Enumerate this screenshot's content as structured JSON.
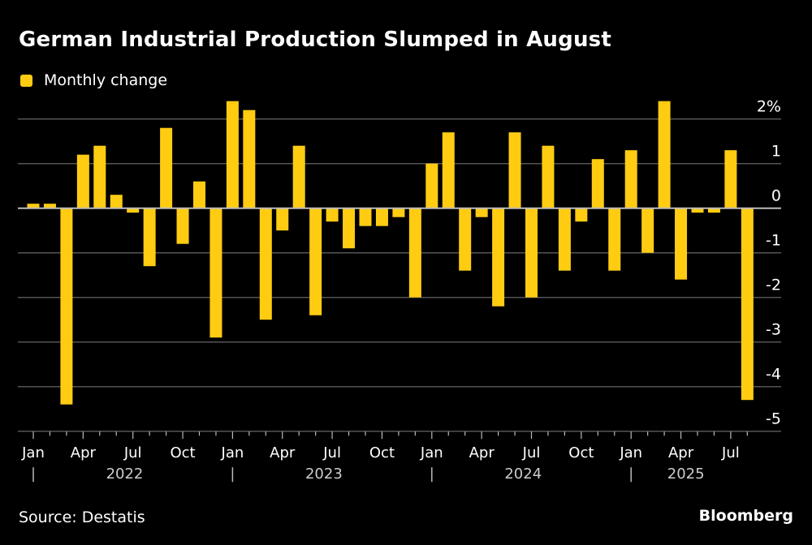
{
  "header": {
    "title": "German Industrial Production Slumped in August"
  },
  "legend": [
    {
      "label": "Monthly change",
      "color": "#FFCC12"
    }
  ],
  "footer": {
    "source": "Source: Destatis",
    "brand": "Bloomberg"
  },
  "colors": {
    "background": "#000000",
    "bar": "#FFCC12",
    "grid": "#555555",
    "zero_line": "#BBBBBB",
    "axis_text": "#FFFFFF",
    "year_text": "#CCCCCC"
  },
  "chart_data": {
    "type": "bar",
    "title": "German Industrial Production Slumped in August",
    "xlabel": "",
    "ylabel": "",
    "y_unit_suffix": "%",
    "ylim": [
      -5,
      2.4
    ],
    "yticks": [
      2,
      1,
      0,
      -1,
      -2,
      -3,
      -4,
      -5
    ],
    "ytick_labels": [
      "2%",
      "1",
      "0",
      "-1",
      "-2",
      "-3",
      "-4",
      "-5"
    ],
    "grid": true,
    "legend_position": "top-left",
    "series": [
      {
        "name": "Monthly change",
        "color": "#FFCC12",
        "values": [
          0.1,
          0.1,
          -4.4,
          1.2,
          1.4,
          0.3,
          -0.1,
          -1.3,
          1.8,
          -0.8,
          0.6,
          -2.9,
          2.4,
          2.2,
          -2.5,
          -0.5,
          1.4,
          -2.4,
          -0.3,
          -0.9,
          -0.4,
          -0.4,
          -0.2,
          -2.0,
          1.0,
          1.7,
          -1.4,
          -0.2,
          -2.2,
          1.7,
          -2.0,
          1.4,
          -1.4,
          -0.3,
          1.1,
          -1.4,
          1.3,
          -1.0,
          2.4,
          -1.6,
          -0.1,
          -0.1,
          1.3,
          -4.3
        ]
      }
    ],
    "categories": [
      "Jan 2022",
      "Feb 2022",
      "Mar 2022",
      "Apr 2022",
      "May 2022",
      "Jun 2022",
      "Jul 2022",
      "Aug 2022",
      "Sep 2022",
      "Oct 2022",
      "Nov 2022",
      "Dec 2022",
      "Jan 2023",
      "Feb 2023",
      "Mar 2023",
      "Apr 2023",
      "May 2023",
      "Jun 2023",
      "Jul 2023",
      "Aug 2023",
      "Sep 2023",
      "Oct 2023",
      "Nov 2023",
      "Dec 2023",
      "Jan 2024",
      "Feb 2024",
      "Mar 2024",
      "Apr 2024",
      "May 2024",
      "Jun 2024",
      "Jul 2024",
      "Aug 2024",
      "Sep 2024",
      "Oct 2024",
      "Nov 2024",
      "Dec 2024",
      "Jan 2025",
      "Feb 2025",
      "Mar 2025",
      "Apr 2025",
      "May 2025",
      "Jun 2025",
      "Jul 2025",
      "Aug 2025"
    ],
    "month_tick_labels": [
      {
        "index": 0,
        "label": "Jan"
      },
      {
        "index": 3,
        "label": "Apr"
      },
      {
        "index": 6,
        "label": "Jul"
      },
      {
        "index": 9,
        "label": "Oct"
      },
      {
        "index": 12,
        "label": "Jan"
      },
      {
        "index": 15,
        "label": "Apr"
      },
      {
        "index": 18,
        "label": "Jul"
      },
      {
        "index": 21,
        "label": "Oct"
      },
      {
        "index": 24,
        "label": "Jan"
      },
      {
        "index": 27,
        "label": "Apr"
      },
      {
        "index": 30,
        "label": "Jul"
      },
      {
        "index": 33,
        "label": "Oct"
      },
      {
        "index": 36,
        "label": "Jan"
      },
      {
        "index": 39,
        "label": "Apr"
      },
      {
        "index": 42,
        "label": "Jul"
      }
    ],
    "year_labels": [
      {
        "start_index": 0,
        "label": "2022"
      },
      {
        "start_index": 12,
        "label": "2023"
      },
      {
        "start_index": 24,
        "label": "2024"
      },
      {
        "start_index": 36,
        "label": "2025"
      }
    ]
  }
}
